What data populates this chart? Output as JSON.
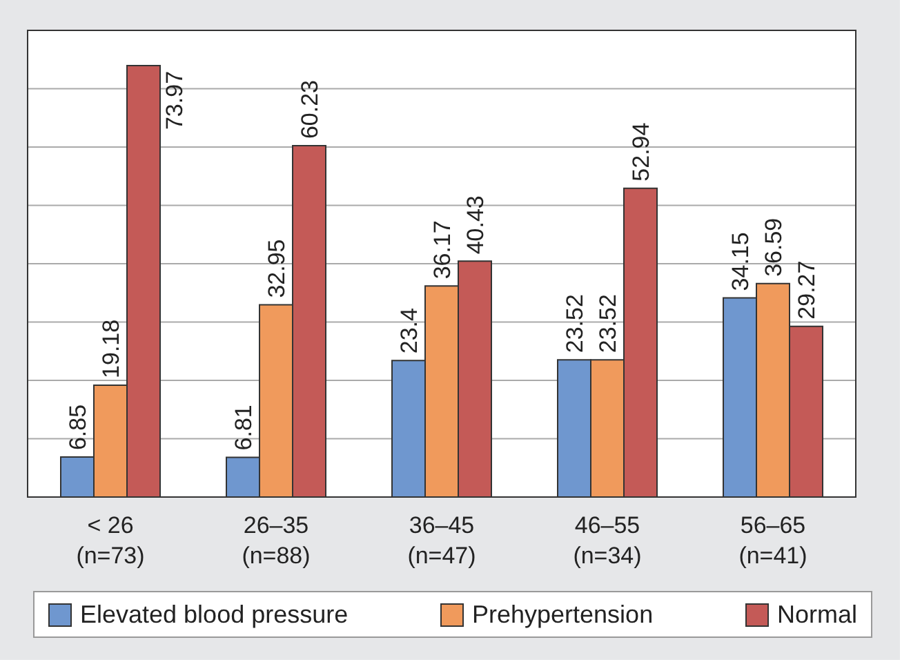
{
  "chart_data": {
    "type": "bar",
    "categories": [
      "< 26\n(n=73)",
      "26–35\n(n=88)",
      "36–45\n(n=47)",
      "46–55\n(n=34)",
      "56–65\n(n=41)"
    ],
    "series": [
      {
        "name": "Elevated blood pressure",
        "color": "#6f97cf",
        "values": [
          6.85,
          6.81,
          23.4,
          23.52,
          34.15
        ]
      },
      {
        "name": "Prehypertension",
        "color": "#f09a5c",
        "values": [
          19.18,
          32.95,
          36.17,
          23.52,
          36.59
        ]
      },
      {
        "name": "Normal",
        "color": "#c45a57",
        "values": [
          73.97,
          60.23,
          40.43,
          52.94,
          29.27
        ]
      }
    ],
    "ylim": [
      0,
      80
    ],
    "yticks": [
      {
        "value": 0,
        "label": null
      },
      {
        "value": 10,
        "label": null
      },
      {
        "value": 20,
        "label": null
      },
      {
        "value": 30,
        "label": null
      },
      {
        "value": 40,
        "label": null
      },
      {
        "value": 50,
        "label": null
      },
      {
        "value": 60,
        "label": null
      },
      {
        "value": 70,
        "label": null
      },
      {
        "value": 80,
        "label": null
      }
    ],
    "tick_labels": "x",
    "grid": "y",
    "legend": "bottom",
    "data_labels": true
  }
}
